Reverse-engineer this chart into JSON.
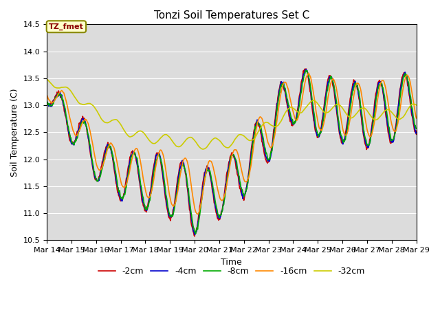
{
  "title": "Tonzi Soil Temperatures Set C",
  "xlabel": "Time",
  "ylabel": "Soil Temperature (C)",
  "ylim": [
    10.5,
    14.5
  ],
  "xlim": [
    0,
    360
  ],
  "x_tick_labels": [
    "Mar 14",
    "Mar 15",
    "Mar 16",
    "Mar 17",
    "Mar 18",
    "Mar 19",
    "Mar 20",
    "Mar 21",
    "Mar 22",
    "Mar 23",
    "Mar 24",
    "Mar 25",
    "Mar 26",
    "Mar 27",
    "Mar 28",
    "Mar 29"
  ],
  "x_tick_positions": [
    0,
    24,
    48,
    72,
    96,
    120,
    144,
    168,
    192,
    216,
    240,
    264,
    288,
    312,
    336,
    360
  ],
  "annotation_text": "TZ_fmet",
  "annotation_color": "#8B0000",
  "annotation_bg": "#FFFFCC",
  "bg_color": "#DCDCDC",
  "series": {
    "-2cm": {
      "color": "#CC0000",
      "lw": 1.2
    },
    "-4cm": {
      "color": "#0000CC",
      "lw": 1.2
    },
    "-8cm": {
      "color": "#00AA00",
      "lw": 1.2
    },
    "-16cm": {
      "color": "#FF8800",
      "lw": 1.2
    },
    "-32cm": {
      "color": "#CCCC00",
      "lw": 1.2
    }
  },
  "legend_order": [
    "-2cm",
    "-4cm",
    "-8cm",
    "-16cm",
    "-32cm"
  ]
}
